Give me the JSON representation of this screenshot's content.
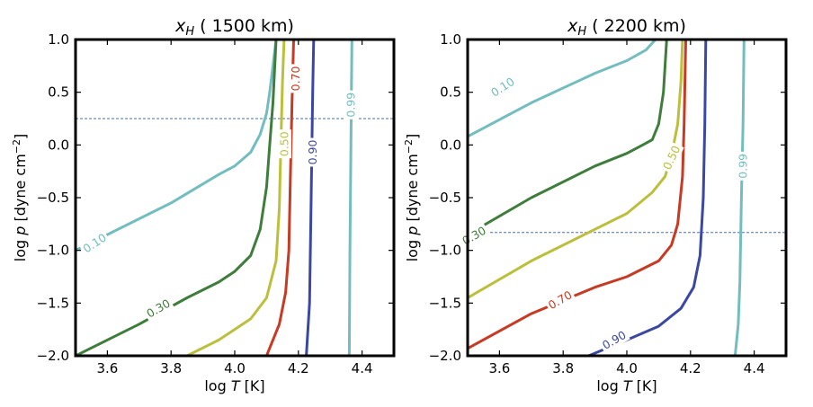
{
  "colors": {
    "c010": "#73bdbf",
    "c030": "#3e7d3b",
    "c050": "#bcbf3c",
    "c070": "#c73a23",
    "c090": "#3b48a3",
    "c099": "#73bdbf"
  },
  "chart_data": [
    {
      "type": "contour",
      "title": "x_H ( 1500 km)",
      "title_main": "x",
      "title_sub": "H",
      "title_rest": " ( 1500 km)",
      "xlabel": "log T [K]",
      "ylabel": "log p [dyne cm^-2]",
      "xlim": [
        3.5,
        4.5
      ],
      "ylim": [
        -2.0,
        1.0
      ],
      "xticks": [
        "3.6",
        "3.8",
        "4.0",
        "4.2",
        "4.4"
      ],
      "yticks": [
        "1.0",
        "0.5",
        "0.0",
        "−0.5",
        "−1.0",
        "−1.5",
        "−2.0"
      ],
      "hline_y": 0.25,
      "series": [
        {
          "level": "0.10",
          "color_key": "c010",
          "label": {
            "x": 3.56,
            "y": -0.93,
            "text": "0.10",
            "angle": -33
          },
          "points": [
            [
              3.5,
              -1.0
            ],
            [
              3.6,
              -0.85
            ],
            [
              3.8,
              -0.55
            ],
            [
              3.95,
              -0.28
            ],
            [
              4.0,
              -0.2
            ],
            [
              4.05,
              -0.07
            ],
            [
              4.08,
              0.1
            ],
            [
              4.1,
              0.3
            ],
            [
              4.11,
              0.5
            ],
            [
              4.12,
              0.75
            ],
            [
              4.13,
              1.0
            ]
          ]
        },
        {
          "level": "0.30",
          "color_key": "c030",
          "label": {
            "x": 3.76,
            "y": -1.55,
            "text": "0.30",
            "angle": -30
          },
          "points": [
            [
              3.5,
              -2.0
            ],
            [
              3.7,
              -1.7
            ],
            [
              3.85,
              -1.45
            ],
            [
              3.95,
              -1.3
            ],
            [
              4.0,
              -1.2
            ],
            [
              4.05,
              -1.05
            ],
            [
              4.08,
              -0.8
            ],
            [
              4.1,
              -0.4
            ],
            [
              4.11,
              0.0
            ],
            [
              4.12,
              0.4
            ],
            [
              4.13,
              1.0
            ]
          ]
        },
        {
          "level": "0.50",
          "color_key": "c050",
          "label": {
            "x": 4.155,
            "y": 0.01,
            "text": "0.50",
            "angle": -90
          },
          "points": [
            [
              3.85,
              -2.0
            ],
            [
              3.95,
              -1.85
            ],
            [
              4.05,
              -1.65
            ],
            [
              4.1,
              -1.45
            ],
            [
              4.13,
              -1.1
            ],
            [
              4.14,
              -0.6
            ],
            [
              4.145,
              0.0
            ],
            [
              4.15,
              0.6
            ],
            [
              4.155,
              1.0
            ]
          ]
        },
        {
          "level": "0.70",
          "color_key": "c070",
          "label": {
            "x": 4.19,
            "y": 0.63,
            "text": "0.70",
            "angle": -90
          },
          "points": [
            [
              4.1,
              -2.0
            ],
            [
              4.14,
              -1.7
            ],
            [
              4.16,
              -1.4
            ],
            [
              4.17,
              -1.0
            ],
            [
              4.175,
              -0.3
            ],
            [
              4.18,
              0.4
            ],
            [
              4.185,
              1.0
            ]
          ]
        },
        {
          "level": "0.90",
          "color_key": "c090",
          "label": {
            "x": 4.245,
            "y": -0.07,
            "text": "0.90",
            "angle": -90
          },
          "points": [
            [
              4.225,
              -2.0
            ],
            [
              4.235,
              -1.5
            ],
            [
              4.24,
              -0.5
            ],
            [
              4.245,
              0.5
            ],
            [
              4.248,
              1.0
            ]
          ]
        },
        {
          "level": "0.99",
          "color_key": "c099",
          "label": {
            "x": 4.365,
            "y": 0.38,
            "text": "0.99",
            "angle": -90
          },
          "points": [
            [
              4.36,
              -2.0
            ],
            [
              4.362,
              -1.0
            ],
            [
              4.365,
              0.0
            ],
            [
              4.368,
              1.0
            ]
          ]
        }
      ]
    },
    {
      "type": "contour",
      "title": "x_H ( 2200 km)",
      "title_main": "x",
      "title_sub": "H",
      "title_rest": " ( 2200 km)",
      "xlabel": "log T [K]",
      "ylabel": "log p [dyne cm^-2]",
      "xlim": [
        3.5,
        4.5
      ],
      "ylim": [
        -2.0,
        1.0
      ],
      "xticks": [
        "3.6",
        "3.8",
        "4.0",
        "4.2",
        "4.4"
      ],
      "yticks": [
        "1.0",
        "0.5",
        "0.0",
        "−0.5",
        "−1.0",
        "−1.5",
        "−2.0"
      ],
      "hline_y": -0.83,
      "series": [
        {
          "level": "0.10",
          "color_key": "c010",
          "label": {
            "x": 3.61,
            "y": 0.55,
            "text": "0.10",
            "angle": -33
          },
          "points": [
            [
              3.5,
              0.08
            ],
            [
              3.7,
              0.4
            ],
            [
              3.9,
              0.68
            ],
            [
              4.0,
              0.8
            ],
            [
              4.06,
              0.9
            ],
            [
              4.09,
              1.0
            ]
          ]
        },
        {
          "level": "0.30",
          "color_key": "c030",
          "label": {
            "x": 3.52,
            "y": -0.86,
            "text": "0.30",
            "angle": -30
          },
          "points": [
            [
              3.5,
              -0.85
            ],
            [
              3.7,
              -0.5
            ],
            [
              3.9,
              -0.2
            ],
            [
              4.0,
              -0.08
            ],
            [
              4.05,
              0.0
            ],
            [
              4.08,
              0.05
            ],
            [
              4.1,
              0.2
            ],
            [
              4.115,
              0.5
            ],
            [
              4.125,
              1.0
            ]
          ]
        },
        {
          "level": "0.50",
          "color_key": "c050",
          "label": {
            "x": 4.14,
            "y": -0.12,
            "text": "0.50",
            "angle": -65
          },
          "points": [
            [
              3.5,
              -1.45
            ],
            [
              3.7,
              -1.1
            ],
            [
              3.9,
              -0.8
            ],
            [
              4.0,
              -0.65
            ],
            [
              4.08,
              -0.45
            ],
            [
              4.12,
              -0.3
            ],
            [
              4.14,
              -0.1
            ],
            [
              4.16,
              0.2
            ],
            [
              4.17,
              0.6
            ],
            [
              4.175,
              1.0
            ]
          ]
        },
        {
          "level": "0.70",
          "color_key": "c070",
          "label": {
            "x": 3.79,
            "y": -1.47,
            "text": "0.70",
            "angle": -30
          },
          "points": [
            [
              3.5,
              -1.93
            ],
            [
              3.7,
              -1.6
            ],
            [
              3.9,
              -1.35
            ],
            [
              4.0,
              -1.25
            ],
            [
              4.1,
              -1.1
            ],
            [
              4.14,
              -0.95
            ],
            [
              4.16,
              -0.75
            ],
            [
              4.175,
              -0.3
            ],
            [
              4.18,
              0.2
            ],
            [
              4.185,
              1.0
            ]
          ]
        },
        {
          "level": "0.90",
          "color_key": "c090",
          "label": {
            "x": 3.96,
            "y": -1.85,
            "text": "0.90",
            "angle": -30
          },
          "points": [
            [
              3.88,
              -2.0
            ],
            [
              4.0,
              -1.85
            ],
            [
              4.1,
              -1.72
            ],
            [
              4.17,
              -1.55
            ],
            [
              4.21,
              -1.35
            ],
            [
              4.23,
              -1.05
            ],
            [
              4.24,
              -0.5
            ],
            [
              4.245,
              0.2
            ],
            [
              4.248,
              1.0
            ]
          ]
        },
        {
          "level": "0.99",
          "color_key": "c099",
          "label": {
            "x": 4.365,
            "y": -0.2,
            "text": "0.99",
            "angle": -90
          },
          "points": [
            [
              4.34,
              -2.0
            ],
            [
              4.35,
              -1.7
            ],
            [
              4.355,
              -1.3
            ],
            [
              4.36,
              -0.5
            ],
            [
              4.365,
              0.2
            ],
            [
              4.368,
              1.0
            ]
          ]
        }
      ]
    }
  ]
}
